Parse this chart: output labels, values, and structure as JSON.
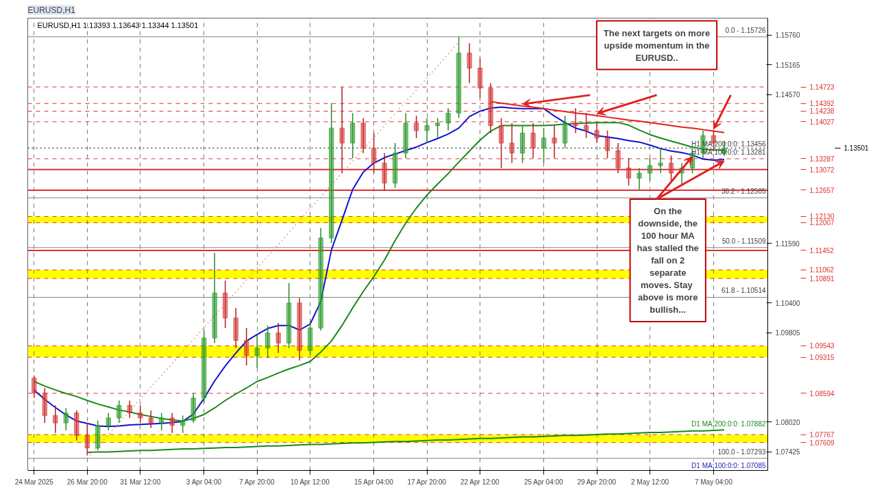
{
  "chart_data": {
    "type": "candlestick",
    "title": "EURUSD,H1",
    "subtitle": "EURUSD,H1  1.13393 1.13643 1.13344 1.13501",
    "categories": [
      "24 Mar 2025",
      null,
      null,
      null,
      null,
      "26 Mar 20:00",
      null,
      null,
      null,
      null,
      "31 Mar 12:00",
      null,
      null,
      null,
      null,
      null,
      "3 Apr 04:00",
      null,
      null,
      null,
      null,
      "7 Apr 20:00",
      null,
      null,
      null,
      null,
      "10 Apr 12:00",
      null,
      null,
      null,
      null,
      null,
      "15 Apr 04:00",
      null,
      null,
      null,
      null,
      "17 Apr 20:00",
      null,
      null,
      null,
      null,
      "22 Apr 12:00",
      null,
      null,
      null,
      null,
      null,
      "25 Apr 04:00",
      null,
      null,
      null,
      null,
      "29 Apr 20:00",
      null,
      null,
      null,
      null,
      "2 May 12:00",
      null,
      null,
      null,
      null,
      null,
      "7 May 04:00",
      null
    ],
    "ohlc": [
      [
        1.089,
        1.0895,
        1.085,
        1.086
      ],
      [
        1.086,
        1.087,
        1.08,
        1.0815
      ],
      [
        1.0815,
        1.0835,
        1.078,
        1.08
      ],
      [
        1.08,
        1.083,
        1.0785,
        1.082
      ],
      [
        1.082,
        1.0825,
        1.0765,
        1.0775
      ],
      [
        1.0775,
        1.08,
        1.0735,
        1.075
      ],
      [
        1.075,
        1.0805,
        1.0745,
        1.0795
      ],
      [
        1.0795,
        1.082,
        1.0785,
        1.081
      ],
      [
        1.081,
        1.0845,
        1.08,
        1.0835
      ],
      [
        1.0835,
        1.0845,
        1.081,
        1.082
      ],
      [
        1.082,
        1.0835,
        1.08,
        1.081
      ],
      [
        1.081,
        1.0825,
        1.079,
        1.08
      ],
      [
        1.08,
        1.082,
        1.0785,
        1.081
      ],
      [
        1.081,
        1.082,
        1.078,
        1.0795
      ],
      [
        1.0795,
        1.0815,
        1.078,
        1.0805
      ],
      [
        1.0805,
        1.086,
        1.08,
        1.085
      ],
      [
        1.085,
        1.0985,
        1.084,
        1.097
      ],
      [
        1.097,
        1.114,
        1.096,
        1.106
      ],
      [
        1.106,
        1.1085,
        1.099,
        1.101
      ],
      [
        1.101,
        1.103,
        1.095,
        1.0965
      ],
      [
        1.0965,
        1.099,
        1.0915,
        1.0935
      ],
      [
        1.0935,
        1.0975,
        1.091,
        1.095
      ],
      [
        1.095,
        1.0995,
        1.093,
        1.098
      ],
      [
        1.098,
        1.1,
        1.094,
        1.096
      ],
      [
        1.096,
        1.108,
        1.095,
        1.104
      ],
      [
        1.104,
        1.105,
        1.0925,
        1.0945
      ],
      [
        1.0945,
        1.1,
        1.0935,
        1.099
      ],
      [
        1.099,
        1.119,
        1.0985,
        1.117
      ],
      [
        1.117,
        1.144,
        1.116,
        1.139
      ],
      [
        1.139,
        1.1472,
        1.13,
        1.136
      ],
      [
        1.136,
        1.142,
        1.133,
        1.14
      ],
      [
        1.14,
        1.141,
        1.134,
        1.135
      ],
      [
        1.135,
        1.138,
        1.13,
        1.132
      ],
      [
        1.132,
        1.134,
        1.1265,
        1.128
      ],
      [
        1.128,
        1.136,
        1.127,
        1.134
      ],
      [
        1.134,
        1.142,
        1.133,
        1.14
      ],
      [
        1.14,
        1.1415,
        1.137,
        1.1385
      ],
      [
        1.1385,
        1.141,
        1.136,
        1.1395
      ],
      [
        1.1395,
        1.141,
        1.137,
        1.14
      ],
      [
        1.14,
        1.143,
        1.1385,
        1.142
      ],
      [
        1.142,
        1.1573,
        1.141,
        1.154
      ],
      [
        1.154,
        1.156,
        1.148,
        1.151
      ],
      [
        1.151,
        1.153,
        1.145,
        1.147
      ],
      [
        1.147,
        1.148,
        1.138,
        1.1395
      ],
      [
        1.1395,
        1.141,
        1.131,
        1.136
      ],
      [
        1.136,
        1.14,
        1.132,
        1.134
      ],
      [
        1.134,
        1.1395,
        1.132,
        1.138
      ],
      [
        1.138,
        1.14,
        1.133,
        1.135
      ],
      [
        1.135,
        1.139,
        1.132,
        1.137
      ],
      [
        1.137,
        1.1395,
        1.133,
        1.136
      ],
      [
        1.136,
        1.1415,
        1.135,
        1.14
      ],
      [
        1.14,
        1.143,
        1.138,
        1.1395
      ],
      [
        1.1395,
        1.142,
        1.137,
        1.1385
      ],
      [
        1.1385,
        1.14,
        1.136,
        1.137
      ],
      [
        1.137,
        1.1385,
        1.133,
        1.1345
      ],
      [
        1.1345,
        1.136,
        1.13,
        1.131
      ],
      [
        1.131,
        1.133,
        1.1275,
        1.129
      ],
      [
        1.129,
        1.131,
        1.1266,
        1.13
      ],
      [
        1.13,
        1.133,
        1.1285,
        1.1315
      ],
      [
        1.1315,
        1.135,
        1.13,
        1.132
      ],
      [
        1.132,
        1.1335,
        1.1285,
        1.13
      ],
      [
        1.13,
        1.132,
        1.1275,
        1.131
      ],
      [
        1.131,
        1.135,
        1.13,
        1.134
      ],
      [
        1.134,
        1.1385,
        1.133,
        1.1375
      ],
      [
        1.1375,
        1.1385,
        1.1345,
        1.136
      ],
      [
        1.13393,
        1.13643,
        1.13344,
        1.13501
      ]
    ],
    "series": [
      {
        "type": "line",
        "color": "#1010d0",
        "values": [
          1.0866,
          1.0847,
          1.0831,
          1.0816,
          1.0804,
          1.0799,
          1.0794,
          1.0793,
          1.0794,
          1.0796,
          1.0797,
          1.0798,
          1.0799,
          1.0801,
          1.0803,
          1.0818,
          1.0849,
          1.0884,
          1.0914,
          1.094,
          1.0964,
          1.0977,
          1.0989,
          1.0995,
          1.0995,
          1.0986,
          1.0998,
          1.1043,
          1.1146,
          1.1206,
          1.1267,
          1.1302,
          1.132,
          1.1331,
          1.1338,
          1.1345,
          1.1352,
          1.1361,
          1.1369,
          1.1378,
          1.139,
          1.1413,
          1.1424,
          1.143,
          1.1432,
          1.143,
          1.1429,
          1.1429,
          1.1429,
          1.1414,
          1.1401,
          1.139,
          1.1384,
          1.1375,
          1.1372,
          1.1369,
          1.1365,
          1.1362,
          1.1356,
          1.1349,
          1.1344,
          1.1341,
          1.1336,
          1.1328,
          1.1326,
          1.1327
        ]
      },
      {
        "type": "line",
        "color": "#188818",
        "values": [
          1.0883,
          1.0874,
          1.0866,
          1.0859,
          1.0853,
          1.0845,
          1.0838,
          1.0832,
          1.0826,
          1.0822,
          1.0817,
          1.0813,
          1.0809,
          1.0806,
          1.0804,
          1.0809,
          1.0817,
          1.083,
          1.0845,
          1.0858,
          1.087,
          1.0883,
          1.0891,
          1.09,
          1.0908,
          1.0915,
          1.0923,
          1.0942,
          1.0964,
          1.0995,
          1.103,
          1.1063,
          1.1093,
          1.1126,
          1.1165,
          1.12,
          1.123,
          1.1256,
          1.1278,
          1.1299,
          1.1322,
          1.1344,
          1.1366,
          1.1384,
          1.1395,
          1.1395,
          1.1395,
          1.1395,
          1.1395,
          1.1396,
          1.1398,
          1.1399,
          1.14,
          1.1401,
          1.1401,
          1.1401,
          1.1396,
          1.1386,
          1.1377,
          1.137,
          1.1364,
          1.1358,
          1.1352,
          1.1348,
          1.1346,
          1.1346
        ]
      },
      {
        "type": "line",
        "color": "#188818",
        "values": [
          null,
          null,
          null,
          null,
          null,
          1.0741,
          1.0742,
          1.0742,
          1.0743,
          1.0744,
          1.0745,
          1.0745,
          1.0746,
          1.0747,
          1.0748,
          1.0748,
          1.0749,
          1.075,
          1.0751,
          1.0751,
          1.0752,
          1.0753,
          1.0754,
          1.0754,
          1.0755,
          1.0756,
          1.0757,
          1.0757,
          1.0758,
          1.0759,
          1.076,
          1.076,
          1.0761,
          1.0762,
          1.0763,
          1.0763,
          1.0764,
          1.0765,
          1.0766,
          1.0766,
          1.0767,
          1.0768,
          1.0769,
          1.0769,
          1.077,
          1.0771,
          1.0772,
          1.0772,
          1.0773,
          1.0774,
          1.0775,
          1.0775,
          1.0776,
          1.0777,
          1.0778,
          1.0778,
          1.0779,
          1.078,
          1.0781,
          1.0781,
          1.0782,
          1.0783,
          1.0784,
          1.0784,
          1.0785,
          1.0786
        ]
      },
      {
        "type": "line",
        "color": "#e02020",
        "values": [
          null,
          null,
          null,
          null,
          null,
          null,
          null,
          null,
          null,
          null,
          null,
          null,
          null,
          null,
          null,
          null,
          null,
          null,
          null,
          null,
          null,
          null,
          null,
          null,
          null,
          null,
          null,
          null,
          null,
          null,
          null,
          null,
          null,
          null,
          null,
          null,
          null,
          null,
          null,
          null,
          null,
          null,
          null,
          1.1443,
          1.144,
          1.1437,
          1.1434,
          1.1432,
          1.1429,
          1.1426,
          1.1423,
          1.142,
          1.1418,
          1.1415,
          1.1412,
          1.1409,
          1.1406,
          1.1404,
          1.1401,
          1.1398,
          1.1395,
          1.1392,
          1.139,
          1.1387,
          1.1384,
          1.1381
        ]
      },
      {
        "type": "line",
        "color": "#f08080",
        "line_style": "dotted",
        "values": [
          null,
          null,
          null,
          null,
          null,
          1.0729,
          1.0753,
          1.0777,
          1.08,
          1.0824,
          1.0848,
          1.0872,
          1.0895,
          1.0919,
          1.0943,
          1.0967,
          1.0991,
          1.1014,
          1.1038,
          1.1062,
          1.1086,
          1.111,
          1.1133,
          1.1157,
          1.1181,
          1.1205,
          1.1229,
          1.1252,
          1.1276,
          1.13,
          1.1324,
          1.1347,
          1.1371,
          1.1395,
          1.1419,
          1.1443,
          1.1466,
          1.149,
          1.1514,
          1.1538,
          1.1562,
          null,
          null,
          null,
          null,
          null,
          null,
          null,
          null,
          null,
          null,
          null,
          null,
          null,
          null,
          null,
          null,
          null,
          null,
          null,
          null,
          null,
          null,
          null,
          null,
          null
        ]
      }
    ],
    "ylim": [
      1.0705,
      1.161
    ],
    "yticks": [
      1.07425,
      {
        "value": 1.0802,
        "label": "1.08020"
      },
      1.09805,
      {
        "value": 1.104,
        "label": "1.10400"
      },
      {
        "value": 1.1159,
        "label": "1.11590"
      },
      {
        "value": 1.1457,
        "label": "1.14570"
      },
      1.15165,
      {
        "value": 1.1576,
        "label": "1.15760"
      }
    ],
    "grid": "x",
    "line_style": "solid",
    "ref_lines": [
      {
        "axis": "y",
        "value": 1.14723,
        "label": "1.14723",
        "color": "#e03030",
        "line_style": "dashed"
      },
      {
        "axis": "y",
        "value": 1.14392,
        "label": "1.14392",
        "color": "#e03030",
        "line_style": "dashed"
      },
      {
        "axis": "y",
        "value": 1.14238,
        "label": "1.14238",
        "color": "#e03030",
        "line_style": "dashed"
      },
      {
        "axis": "y",
        "value": 1.14027,
        "label": "1.14027",
        "color": "#e03030",
        "line_style": "dashed"
      },
      {
        "axis": "y",
        "value": 1.13501,
        "label": "1.13501",
        "color": "#000000",
        "line_style": "dotted"
      },
      {
        "axis": "y",
        "value": 1.13287,
        "label": "1.13287",
        "color": "#e03030",
        "line_style": "dashed"
      },
      {
        "axis": "y",
        "value": 1.13072,
        "label": "1.13072",
        "color": "#e03030",
        "line_style": "solid"
      },
      {
        "axis": "y",
        "value": 1.12657,
        "label": "1.12657",
        "color": "#e03030",
        "line_style": "solid"
      },
      {
        "axis": "y",
        "value": 1.1213,
        "label": "1.12130",
        "color": "#e03030",
        "line_style": "dashed"
      },
      {
        "axis": "y",
        "value": 1.12007,
        "label": "1.12007",
        "color": "#e03030",
        "line_style": "dashed"
      },
      {
        "axis": "y",
        "value": 1.11452,
        "label": "1.11452",
        "color": "#e03030",
        "line_style": "solid"
      },
      {
        "axis": "y",
        "value": 1.11062,
        "label": "1.11062",
        "color": "#e03030",
        "line_style": "dashed"
      },
      {
        "axis": "y",
        "value": 1.10891,
        "label": "1.10891",
        "color": "#e03030",
        "line_style": "dashed"
      },
      {
        "axis": "y",
        "value": 1.09543,
        "label": "1.09543",
        "color": "#e03030",
        "line_style": "dashed"
      },
      {
        "axis": "y",
        "value": 1.09315,
        "label": "1.09315",
        "color": "#e03030",
        "line_style": "dashed"
      },
      {
        "axis": "y",
        "value": 1.08594,
        "label": "1.08594",
        "color": "#e03030",
        "line_style": "dashed"
      },
      {
        "axis": "y",
        "value": 1.07767,
        "label": "1.07767",
        "color": "#e03030",
        "line_style": "dashed"
      },
      {
        "axis": "y",
        "value": 1.07609,
        "label": "1.07609",
        "color": "#e03030",
        "line_style": "dashed"
      },
      {
        "axis": "y",
        "value": 1.15726,
        "label": null,
        "color": "#808080",
        "line_style": "solid"
      },
      {
        "axis": "y",
        "value": 1.12505,
        "label": null,
        "color": "#808080",
        "line_style": "solid"
      },
      {
        "axis": "y",
        "value": 1.11509,
        "label": null,
        "color": "#808080",
        "line_style": "solid"
      },
      {
        "axis": "y",
        "value": 1.10514,
        "label": null,
        "color": "#808080",
        "line_style": "solid"
      },
      {
        "axis": "y",
        "value": 1.07293,
        "label": null,
        "color": "#808080",
        "line_style": "solid"
      }
    ],
    "bands": [
      {
        "axis": "y",
        "from": 1.12007,
        "to": 1.1213,
        "color": "#ffff00"
      },
      {
        "axis": "y",
        "from": 1.10891,
        "to": 1.11062,
        "color": "#ffff00"
      },
      {
        "axis": "y",
        "from": 1.09315,
        "to": 1.09543,
        "color": "#ffff00"
      },
      {
        "axis": "y",
        "from": 1.07609,
        "to": 1.07767,
        "color": "#ffff00"
      }
    ],
    "annotations": [
      "The next targets on more\nupside momentum in the\nEURUSD..",
      "On the\ndownside, the\n100 hour MA\nhas stalled the\nfall on 2\nseparate\nmoves.  Stay\nabove is more\nbullish...",
      "D1 MA:100:0:0: 1.07085",
      {
        "text": "0.0 - 1.15726",
        "y": 1.15726
      },
      {
        "text": "38.2 - 1.12505",
        "y": 1.12505
      },
      {
        "text": "50.0 - 1.11509",
        "y": 1.11509
      },
      {
        "text": "61.8 - 1.10514",
        "y": 1.10514
      },
      {
        "text": "100.0 - 1.07293",
        "y": 1.07293
      },
      {
        "text": "H1 MA:200:0:0: 1.13456",
        "y": 1.13456
      },
      {
        "text": "H1 MA:100:0:0: 1.13281",
        "y": 1.13281
      },
      "D1 MA:200:0:0: 1.07882"
    ]
  }
}
